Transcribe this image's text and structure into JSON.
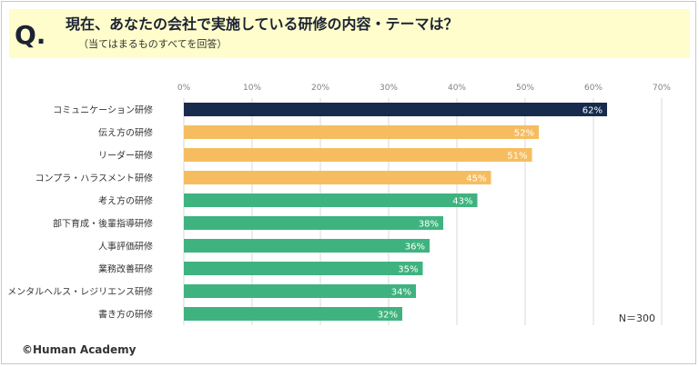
{
  "question": {
    "mark": "Q.",
    "title": "現在、あなたの会社で実施している研修の内容・テーマは？",
    "subtitle": "（当てはまるものすべてを回答）"
  },
  "footer": {
    "copyright": "©Human Academy"
  },
  "chart_data": {
    "type": "bar",
    "orientation": "horizontal",
    "categories": [
      "コミュニケーション研修",
      "伝え方の研修",
      "リーダー研修",
      "コンプラ・ハラスメント研修",
      "考え方の研修",
      "部下育成・後輩指導研修",
      "人事評価研修",
      "業務改善研修",
      "メンタルヘルス・レジリエンス研修",
      "書き方の研修"
    ],
    "values": [
      62,
      52,
      51,
      45,
      43,
      38,
      36,
      35,
      34,
      32
    ],
    "value_labels": [
      "62%",
      "52%",
      "51%",
      "45%",
      "43%",
      "38%",
      "36%",
      "35%",
      "34%",
      "32%"
    ],
    "xlim": [
      0,
      70
    ],
    "xticks": [
      "0%",
      "10%",
      "20%",
      "30%",
      "40%",
      "50%",
      "60%",
      "70%"
    ],
    "grid": true,
    "annotation": "N＝300",
    "colors": {
      "top": "#172b4d",
      "group2": "#f6bd60",
      "group3": "#3fb37f",
      "grid": "#d9d9d9",
      "tick": "#808080",
      "category": "#333333"
    }
  }
}
